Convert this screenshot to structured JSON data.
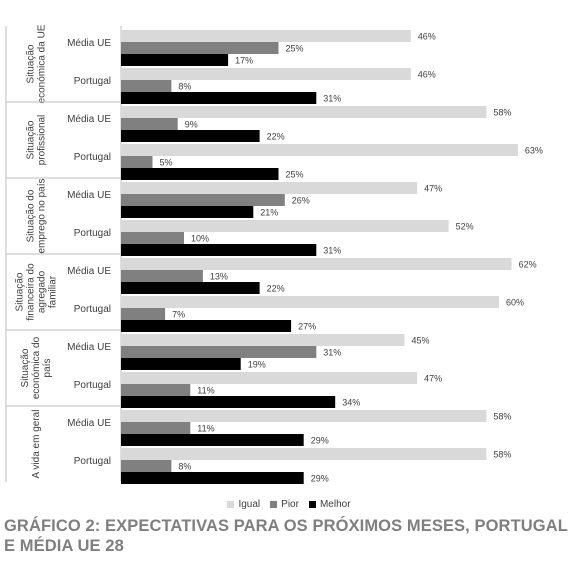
{
  "chart_data": {
    "type": "bar",
    "orientation": "horizontal",
    "groups": [
      {
        "label": "Situação económica da UE",
        "rows": [
          {
            "label": "Média UE",
            "values": [
              46,
              25,
              17
            ]
          },
          {
            "label": "Portugal",
            "values": [
              46,
              8,
              31
            ]
          }
        ]
      },
      {
        "label": "Situação profissional",
        "rows": [
          {
            "label": "Média UE",
            "values": [
              58,
              9,
              22
            ]
          },
          {
            "label": "Portugal",
            "values": [
              63,
              5,
              25
            ]
          }
        ]
      },
      {
        "label": "Situação do emprego no país",
        "rows": [
          {
            "label": "Média UE",
            "values": [
              47,
              26,
              21
            ]
          },
          {
            "label": "Portugal",
            "values": [
              52,
              10,
              31
            ]
          }
        ]
      },
      {
        "label": "Situação financeira do agregado familiar",
        "rows": [
          {
            "label": "Média UE",
            "values": [
              62,
              13,
              22
            ]
          },
          {
            "label": "Portugal",
            "values": [
              60,
              7,
              27
            ]
          }
        ]
      },
      {
        "label": "Situação económica do país",
        "rows": [
          {
            "label": "Média UE",
            "values": [
              45,
              31,
              19
            ]
          },
          {
            "label": "Portugal",
            "values": [
              47,
              11,
              34
            ]
          }
        ]
      },
      {
        "label": "A vida em geral",
        "rows": [
          {
            "label": "Média UE",
            "values": [
              58,
              11,
              29
            ]
          },
          {
            "label": "Portugal",
            "values": [
              58,
              8,
              29
            ]
          }
        ]
      }
    ],
    "series": [
      {
        "name": "Igual",
        "color": "#d9d9d9"
      },
      {
        "name": "Pior",
        "color": "#808080"
      },
      {
        "name": "Melhor",
        "color": "#000000"
      }
    ],
    "value_suffix": "%",
    "xlim": [
      0,
      70
    ],
    "grid": false,
    "legend_position": "bottom"
  },
  "caption": "GRÁFICO 2: EXPECTATIVAS PARA OS PRÓXIMOS MESES, PORTUGAL E MÉDIA UE 28"
}
